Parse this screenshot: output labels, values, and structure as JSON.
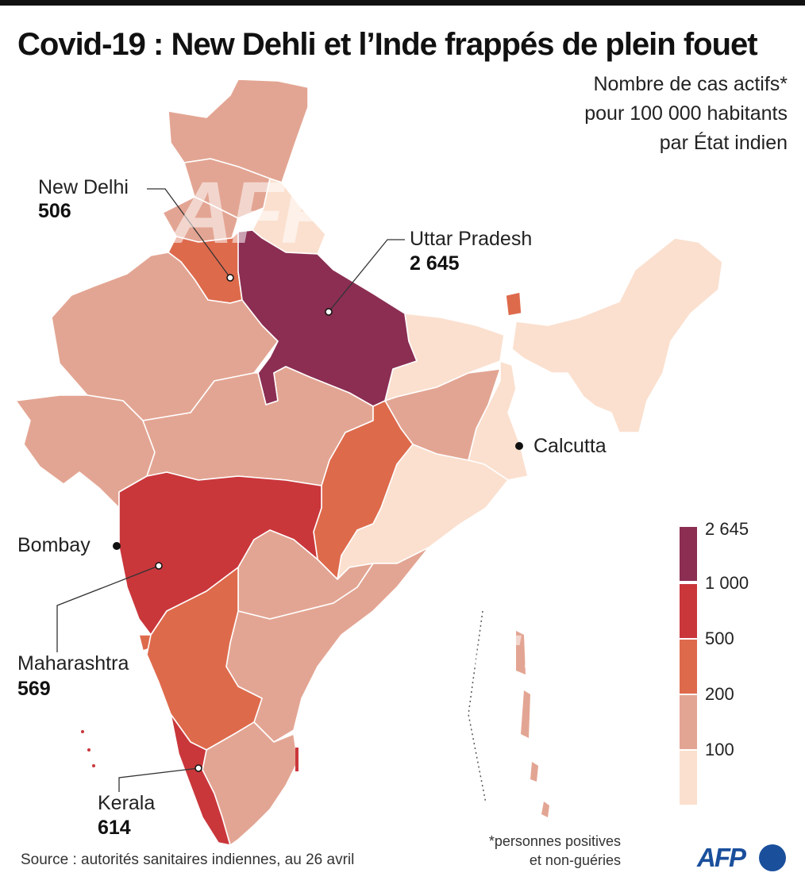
{
  "title": "Covid-19 : New Dehli et l’Inde frappés de plein fouet",
  "subtitle": [
    "Nombre de cas actifs*",
    "pour 100 000 habitants",
    "par État indien"
  ],
  "callouts": {
    "new_delhi": {
      "name": "New Delhi",
      "value": "506"
    },
    "uttar_pradesh": {
      "name": "Uttar Pradesh",
      "value": "2 645"
    },
    "calcutta": {
      "name": "Calcutta"
    },
    "bombay": {
      "name": "Bombay"
    },
    "maharashtra": {
      "name": "Maharashtra",
      "value": "569"
    },
    "kerala": {
      "name": "Kerala",
      "value": "614"
    }
  },
  "legend": {
    "labels": [
      "2 645",
      "1 000",
      "500",
      "200",
      "100"
    ],
    "colors": [
      "#8b2e52",
      "#c9373b",
      "#de6a4c",
      "#e3a593",
      "#fbe0cf"
    ]
  },
  "colors": {
    "dark": "#8b2e52",
    "red": "#c9373b",
    "orange": "#de6a4c",
    "salmon": "#e3a593",
    "light": "#fbe0cf",
    "logo": "#1a4f9c"
  },
  "footnote": [
    "*personnes positives",
    "et non-guéries"
  ],
  "source": "Source : autorités sanitaires indiennes, au 26 avril",
  "logo_text": "AFP",
  "watermark_text": "AFP"
}
